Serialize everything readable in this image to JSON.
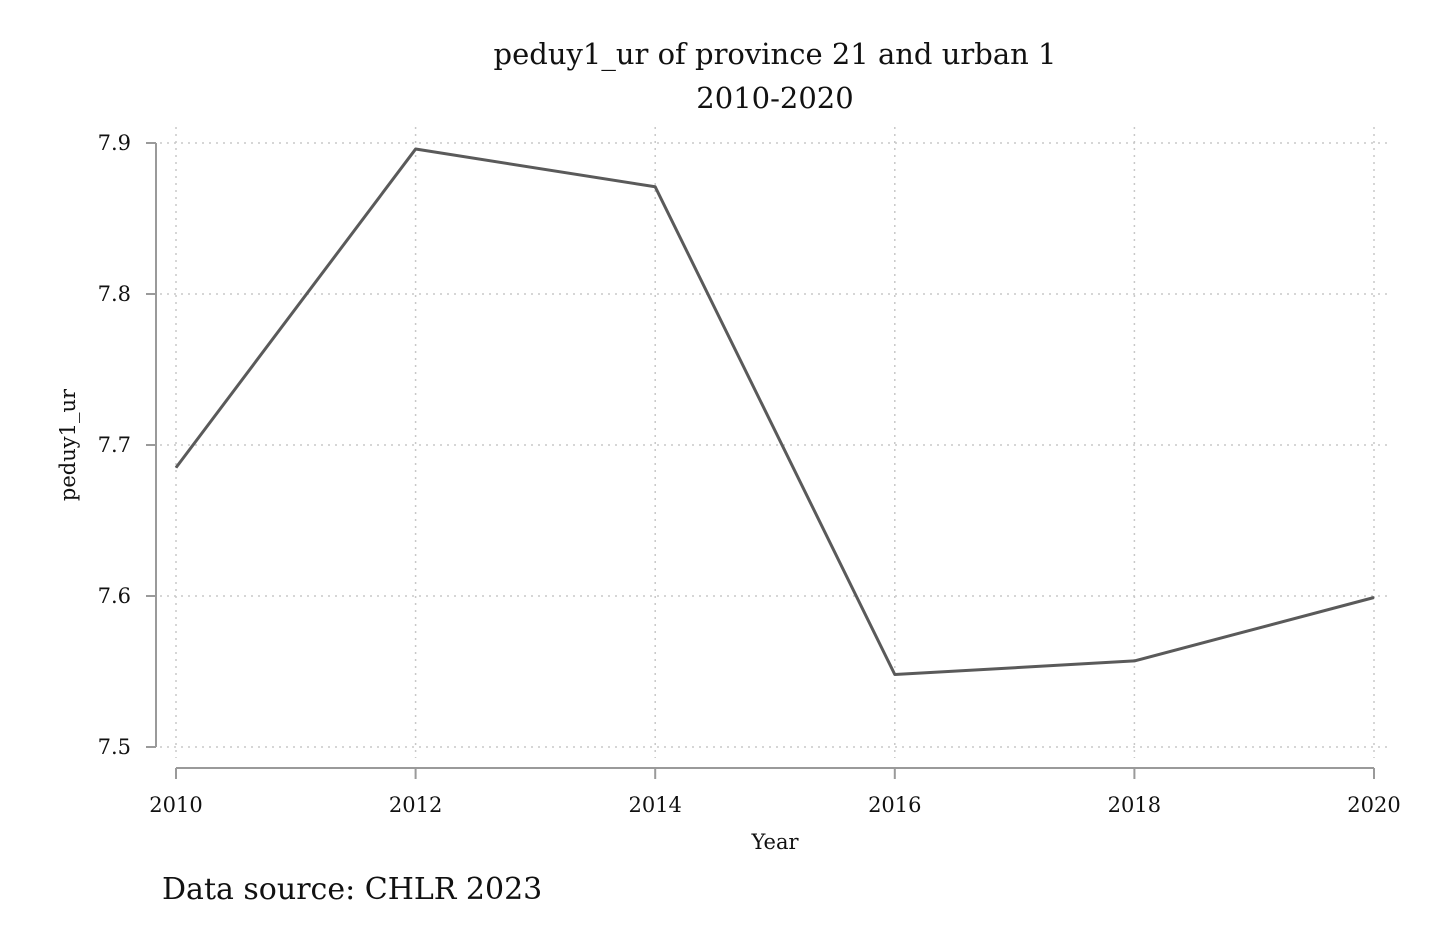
{
  "chart_data": {
    "type": "line",
    "title": "peduy1_ur of province 21 and urban 1",
    "subtitle": "2010-2020",
    "xlabel": "Year",
    "ylabel": "peduy1_ur",
    "x": [
      2010,
      2012,
      2014,
      2016,
      2018,
      2020
    ],
    "series": [
      {
        "values": [
          7.685,
          7.896,
          7.871,
          7.548,
          7.557,
          7.599
        ]
      }
    ],
    "x_ticks": [
      "2010",
      "2012",
      "2014",
      "2016",
      "2018",
      "2020"
    ],
    "y_ticks": [
      "7.5",
      "7.6",
      "7.7",
      "7.8",
      "7.9"
    ],
    "xlim": [
      2010,
      2020
    ],
    "ylim": [
      7.5,
      7.9
    ],
    "grid": true,
    "line_color": "#5a5a5a",
    "note": "Data source: CHLR 2023"
  }
}
